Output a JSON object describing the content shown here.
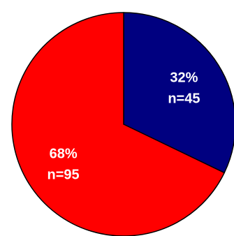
{
  "chart_data": {
    "type": "pie",
    "slices": [
      {
        "value": 45,
        "percent_label": "32%",
        "count_label": "n=45",
        "color": "#000080"
      },
      {
        "value": 95,
        "percent_label": "68%",
        "count_label": "n=95",
        "color": "#ff0000"
      }
    ],
    "start_angle": "top",
    "direction": "clockwise",
    "outline_color": "#000000"
  }
}
